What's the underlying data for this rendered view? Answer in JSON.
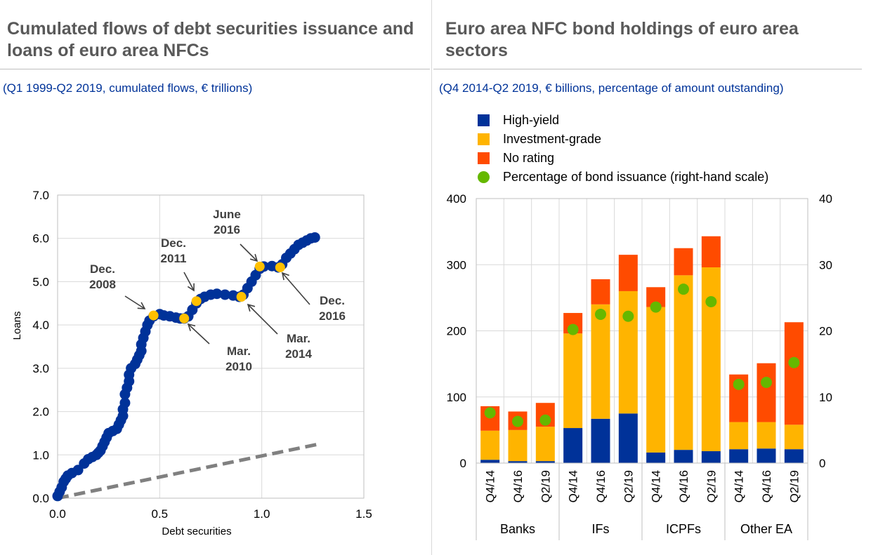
{
  "left_panel": {
    "title": "Cumulated flows of debt securities issuance and loans of euro area NFCs",
    "subtitle": "(Q1 1999-Q2 2019, cumulated flows, € trillions)"
  },
  "right_panel": {
    "title": "Euro area NFC bond holdings of euro area sectors",
    "subtitle": "(Q4 2014-Q2 2019, € billions, percentage of amount outstanding)"
  },
  "colors": {
    "navy": "#003299",
    "gold": "#FFB400",
    "orange": "#FF4B00",
    "green": "#65B800",
    "dashed_line": "#808080",
    "highlight": "#FFC000",
    "grid": "#d9d9d9"
  },
  "chart_data": [
    {
      "type": "scatter",
      "title": "Cumulated flows of debt securities issuance and loans of euro area NFCs",
      "xlabel": "Debt securities",
      "ylabel": "Loans",
      "xlim": [
        0,
        1.5
      ],
      "ylim": [
        0,
        7
      ],
      "x_ticks": [
        "0.0",
        "0.5",
        "1.0",
        "1.5"
      ],
      "y_ticks": [
        "0.0",
        "1.0",
        "2.0",
        "3.0",
        "4.0",
        "5.0",
        "6.0",
        "7.0"
      ],
      "grid": true,
      "series": [
        {
          "points": [
            [
              0.0,
              0.05
            ],
            [
              0.01,
              0.15
            ],
            [
              0.02,
              0.25
            ],
            [
              0.03,
              0.38
            ],
            [
              0.04,
              0.45
            ],
            [
              0.05,
              0.52
            ],
            [
              0.07,
              0.58
            ],
            [
              0.1,
              0.65
            ],
            [
              0.13,
              0.8
            ],
            [
              0.15,
              0.9
            ],
            [
              0.17,
              0.95
            ],
            [
              0.19,
              1.0
            ],
            [
              0.2,
              1.05
            ],
            [
              0.21,
              1.1
            ],
            [
              0.22,
              1.2
            ],
            [
              0.23,
              1.3
            ],
            [
              0.24,
              1.4
            ],
            [
              0.25,
              1.5
            ],
            [
              0.27,
              1.55
            ],
            [
              0.29,
              1.6
            ],
            [
              0.3,
              1.7
            ],
            [
              0.31,
              1.8
            ],
            [
              0.32,
              1.9
            ],
            [
              0.32,
              2.05
            ],
            [
              0.33,
              2.2
            ],
            [
              0.33,
              2.4
            ],
            [
              0.34,
              2.55
            ],
            [
              0.35,
              2.7
            ],
            [
              0.35,
              2.85
            ],
            [
              0.36,
              3.0
            ],
            [
              0.38,
              3.1
            ],
            [
              0.39,
              3.2
            ],
            [
              0.4,
              3.3
            ],
            [
              0.41,
              3.4
            ],
            [
              0.41,
              3.55
            ],
            [
              0.42,
              3.7
            ],
            [
              0.43,
              3.85
            ],
            [
              0.44,
              4.0
            ],
            [
              0.45,
              4.1
            ],
            [
              0.47,
              4.2
            ],
            [
              0.5,
              4.25
            ],
            [
              0.52,
              4.22
            ],
            [
              0.55,
              4.2
            ],
            [
              0.58,
              4.17
            ],
            [
              0.6,
              4.15
            ],
            [
              0.62,
              4.15
            ],
            [
              0.64,
              4.2
            ],
            [
              0.66,
              4.35
            ],
            [
              0.68,
              4.5
            ],
            [
              0.7,
              4.6
            ],
            [
              0.72,
              4.65
            ],
            [
              0.75,
              4.7
            ],
            [
              0.78,
              4.72
            ],
            [
              0.82,
              4.7
            ],
            [
              0.86,
              4.68
            ],
            [
              0.89,
              4.65
            ],
            [
              0.91,
              4.7
            ],
            [
              0.93,
              4.85
            ],
            [
              0.95,
              5.0
            ],
            [
              0.97,
              5.15
            ],
            [
              0.99,
              5.3
            ],
            [
              1.01,
              5.35
            ],
            [
              1.05,
              5.36
            ],
            [
              1.08,
              5.33
            ],
            [
              1.1,
              5.4
            ],
            [
              1.12,
              5.55
            ],
            [
              1.14,
              5.65
            ],
            [
              1.16,
              5.75
            ],
            [
              1.18,
              5.85
            ],
            [
              1.2,
              5.9
            ],
            [
              1.22,
              5.95
            ],
            [
              1.24,
              6.0
            ],
            [
              1.26,
              6.02
            ]
          ]
        },
        {
          "line": [
            [
              0.0,
              0.0
            ],
            [
              1.28,
              1.25
            ]
          ]
        }
      ],
      "highlights": [
        {
          "label": "Dec. 2008",
          "line1": "Dec.",
          "line2": "2008",
          "x": 0.47,
          "y": 4.22
        },
        {
          "label": "Mar. 2010",
          "line1": "Mar.",
          "line2": "2010",
          "x": 0.62,
          "y": 4.15
        },
        {
          "label": "Dec. 2011",
          "line1": "Dec.",
          "line2": "2011",
          "x": 0.68,
          "y": 4.55
        },
        {
          "label": "Mar. 2014",
          "line1": "Mar.",
          "line2": "2014",
          "x": 0.9,
          "y": 4.65
        },
        {
          "label": "June 2016",
          "line1": "June",
          "line2": "2016",
          "x": 0.99,
          "y": 5.35
        },
        {
          "label": "Dec. 2016",
          "line1": "Dec.",
          "line2": "2016",
          "x": 1.09,
          "y": 5.33
        }
      ]
    },
    {
      "type": "bar",
      "title": "Euro area NFC bond holdings of euro area sectors",
      "stacked": true,
      "ylim": [
        0,
        400
      ],
      "y2lim": [
        0,
        40
      ],
      "y_ticks": [
        "0",
        "100",
        "200",
        "300",
        "400"
      ],
      "y2_ticks": [
        "0",
        "10",
        "20",
        "30",
        "40"
      ],
      "categories": [
        "Q4/14",
        "Q4/16",
        "Q2/19",
        "Q4/14",
        "Q4/16",
        "Q2/19",
        "Q4/14",
        "Q4/16",
        "Q2/19",
        "Q4/14",
        "Q4/16",
        "Q2/19"
      ],
      "groups": [
        "Banks",
        "IFs",
        "ICPFs",
        "Other EA"
      ],
      "legend_position": "top",
      "series": [
        {
          "name": "High-yield",
          "values": [
            5,
            3,
            3,
            53,
            67,
            75,
            16,
            20,
            18,
            21,
            22,
            21
          ]
        },
        {
          "name": "Investment-grade",
          "values": [
            44,
            47,
            52,
            143,
            173,
            185,
            220,
            264,
            278,
            41,
            40,
            37
          ]
        },
        {
          "name": "No rating",
          "values": [
            37,
            28,
            36,
            31,
            38,
            55,
            30,
            41,
            47,
            72,
            89,
            155
          ]
        },
        {
          "name": "Percentage of bond issuance (right-hand scale)",
          "axis": "right",
          "values": [
            7.6,
            6.3,
            6.5,
            20.2,
            22.5,
            22.2,
            23.6,
            26.3,
            24.4,
            11.9,
            12.2,
            15.2
          ]
        }
      ]
    }
  ]
}
